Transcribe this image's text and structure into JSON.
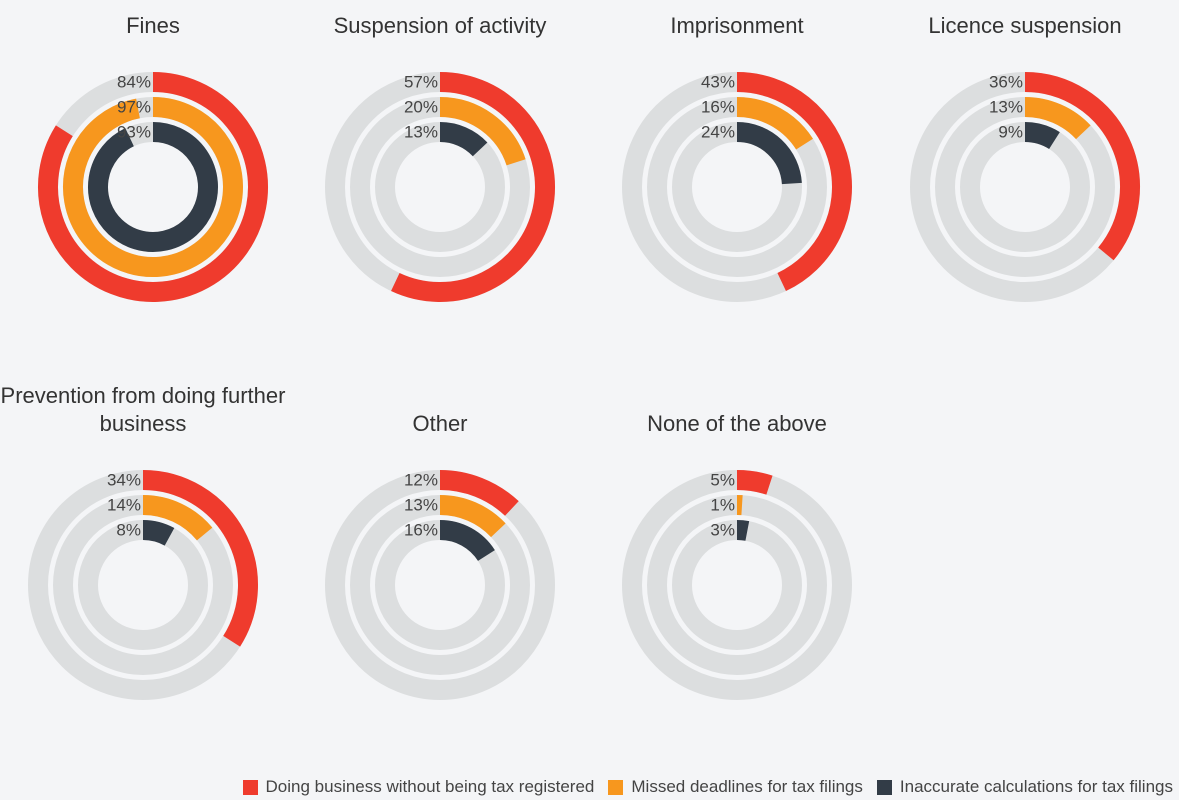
{
  "chart_data": {
    "type": "radial_bar",
    "categories": [
      "Fines",
      "Suspension of activity",
      "Imprisonment",
      "Licence suspension",
      "Prevention from doing further business",
      "Other",
      "None of the above"
    ],
    "series": [
      {
        "name": "Doing business without being tax registered",
        "color": "#ef3b2d",
        "values": [
          84,
          57,
          43,
          36,
          34,
          12,
          5
        ],
        "value_labels": [
          "84%",
          "57%",
          "43%",
          "36%",
          "34%",
          "12%",
          "5%"
        ]
      },
      {
        "name": "Missed deadlines for tax filings",
        "color": "#f7971e",
        "values": [
          97,
          20,
          16,
          13,
          14,
          13,
          1
        ],
        "value_labels": [
          "97%",
          "20%",
          "16%",
          "13%",
          "14%",
          "13%",
          "1%"
        ]
      },
      {
        "name": "Inaccurate calculations for tax filings",
        "color": "#323c47",
        "values": [
          93,
          13,
          24,
          9,
          8,
          16,
          3
        ],
        "value_labels": [
          "93%",
          "13%",
          "24%",
          "9%",
          "8%",
          "16%",
          "3%"
        ]
      }
    ],
    "track_color": "#dcdedf"
  }
}
